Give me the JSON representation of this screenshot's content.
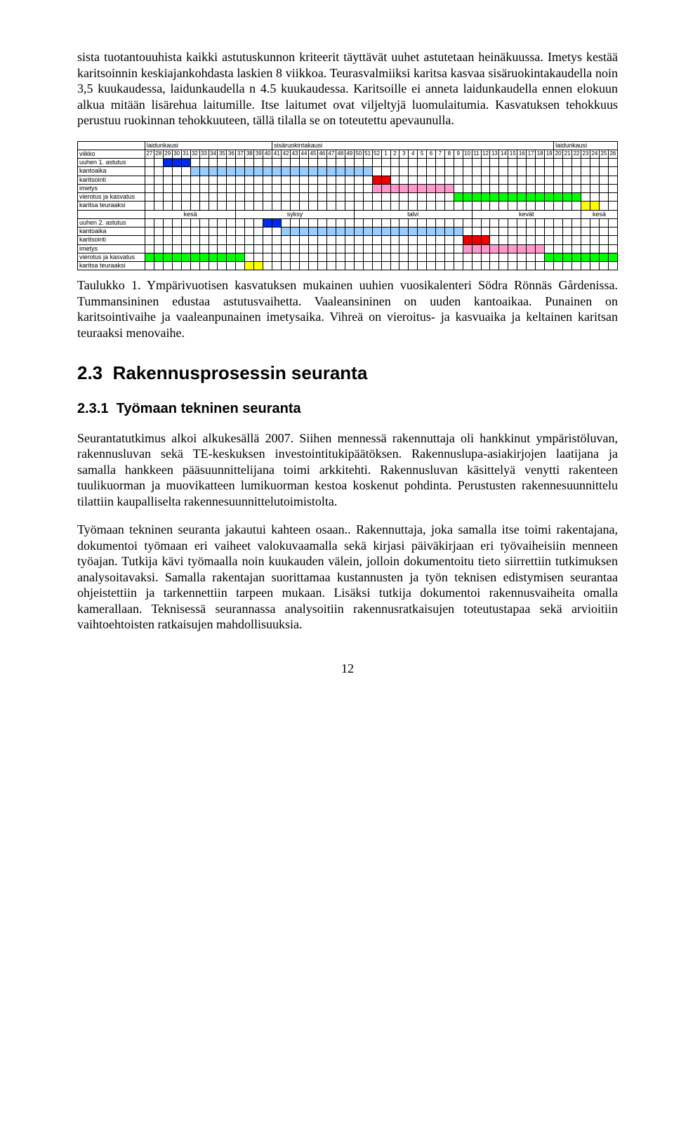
{
  "colors": {
    "dark_blue": "#002aee",
    "light_blue": "#99ccff",
    "red": "#ee0000",
    "pink": "#ff99cc",
    "green": "#00ff00",
    "yellow": "#ffff00",
    "bg": "#ffffff",
    "border": "#000000"
  },
  "para1": "sista tuotantouuhista kaikki astutuskunnon kriteerit täyttävät uuhet astutetaan heinäkuussa. Imetys kestää karitsoinnin keskiajankohdasta laskien 8 viikkoa. Teurasvalmiiksi karitsa kasvaa sisäruokintakaudella noin 3,5 kuukaudessa, laidunkaudella n 4.5 kuukaudessa. Karitsoille ei anneta laidunkaudella ennen elokuun alkua mitään lisärehua laitumille. Itse laitumet ovat viljeltyjä luomulaitumia. Kasvatuksen tehokkuus perustuu ruokinnan tehokkuuteen, tällä tilalla se on toteutettu apevaunulla.",
  "caption": "Taulukko 1. Ympärivuotisen kasvatuksen mukainen uuhien vuosikalenteri Södra Rönnäs Gårdenissa. Tummansininen edustaa astutusvaihetta. Vaaleansininen on uuden kantoaikaa. Punainen on karitsointivaihe ja vaaleanpunainen imetysaika. Vihreä on vieroitus- ja kasvuaika ja keltainen karitsan teuraaksi menovaihe.",
  "sec_num": "2.3",
  "sec_title": "Rakennusprosessin seuranta",
  "subsec_num": "2.3.1",
  "subsec_title": "Työmaan tekninen seuranta",
  "para2": "Seurantatutkimus alkoi alkukesällä 2007. Siihen mennessä rakennuttaja oli hankkinut ympäristöluvan, rakennusluvan sekä TE-keskuksen investointitukipäätöksen. Rakennuslupa-asiakirjojen laatijana ja samalla hankkeen pääsuunnittelijana toimi arkkitehti. Rakennusluvan käsittelyä venytti rakenteen tuulikuorman ja muovikatteen lumikuorman kestoa koskenut pohdinta. Perustusten rakennesuunnittelu tilattiin kaupalliselta rakennesuunnittelutoimistolta.",
  "para3": "Työmaan tekninen seuranta jakautui kahteen osaan.. Rakennuttaja, joka samalla itse toimi rakentajana, dokumentoi työmaan eri vaiheet valokuvaamalla sekä kirjasi päiväkirjaan eri työvaiheisiin menneen työajan. Tutkija kävi työmaalla noin kuukauden välein, jolloin dokumentoitu tieto siirrettiin tutkimuksen analysoitavaksi. Samalla rakentajan suorittamaa kustannusten ja työn teknisen edistymisen seurantaa ohjeistettiin ja tarkennettiin tarpeen mukaan. Lisäksi tutkija dokumentoi rakennusvaiheita omalla kamerallaan. Teknisessä seurannassa analysoitiin rakennusratkaisujen toteutustapaa sekä arvioitiin vaihtoehtoisten ratkaisujen mahdollisuuksia.",
  "pagenum": "12",
  "gantt": {
    "weeks": [
      27,
      28,
      29,
      30,
      31,
      32,
      33,
      34,
      35,
      36,
      37,
      38,
      39,
      40,
      41,
      42,
      43,
      44,
      45,
      46,
      47,
      48,
      49,
      50,
      51,
      52,
      1,
      2,
      3,
      4,
      5,
      6,
      7,
      8,
      9,
      10,
      11,
      12,
      13,
      14,
      15,
      16,
      17,
      18,
      19,
      20,
      21,
      22,
      23,
      24,
      25,
      26
    ],
    "top_headers": [
      {
        "label": "laidunkausi",
        "span": 14
      },
      {
        "label": "sisäruokintakausi",
        "span": 31
      },
      {
        "label": "laidunkausi",
        "span": 7
      }
    ],
    "viikko_label": "viikko",
    "rows1": [
      {
        "label": "uuhen 1. astutus",
        "cells": [
          0,
          0,
          1,
          1,
          1,
          0,
          0,
          0,
          0,
          0,
          0,
          0,
          0,
          0,
          0,
          0,
          0,
          0,
          0,
          0,
          0,
          0,
          0,
          0,
          0,
          0,
          0,
          0,
          0,
          0,
          0,
          0,
          0,
          0,
          0,
          0,
          0,
          0,
          0,
          0,
          0,
          0,
          0,
          0,
          0,
          0,
          0,
          0,
          0,
          0,
          0,
          0
        ]
      },
      {
        "label": "kantoaika",
        "cells": [
          0,
          0,
          0,
          0,
          0,
          2,
          2,
          2,
          2,
          2,
          2,
          2,
          2,
          2,
          2,
          2,
          2,
          2,
          2,
          2,
          2,
          2,
          2,
          2,
          2,
          0,
          0,
          0,
          0,
          0,
          0,
          0,
          0,
          0,
          0,
          0,
          0,
          0,
          0,
          0,
          0,
          0,
          0,
          0,
          0,
          0,
          0,
          0,
          0,
          0,
          0,
          0
        ]
      },
      {
        "label": "karitsointi",
        "cells": [
          0,
          0,
          0,
          0,
          0,
          0,
          0,
          0,
          0,
          0,
          0,
          0,
          0,
          0,
          0,
          0,
          0,
          0,
          0,
          0,
          0,
          0,
          0,
          0,
          0,
          3,
          3,
          0,
          0,
          0,
          0,
          0,
          0,
          0,
          0,
          0,
          0,
          0,
          0,
          0,
          0,
          0,
          0,
          0,
          0,
          0,
          0,
          0,
          0,
          0,
          0,
          0
        ]
      },
      {
        "label": "imetys",
        "cells": [
          0,
          0,
          0,
          0,
          0,
          0,
          0,
          0,
          0,
          0,
          0,
          0,
          0,
          0,
          0,
          0,
          0,
          0,
          0,
          0,
          0,
          0,
          0,
          0,
          0,
          4,
          4,
          4,
          4,
          4,
          4,
          4,
          4,
          4,
          0,
          0,
          0,
          0,
          0,
          0,
          0,
          0,
          0,
          0,
          0,
          0,
          0,
          0,
          0,
          0,
          0,
          0
        ]
      },
      {
        "label": "vierotus ja kasvatus",
        "cells": [
          0,
          0,
          0,
          0,
          0,
          0,
          0,
          0,
          0,
          0,
          0,
          0,
          0,
          0,
          0,
          0,
          0,
          0,
          0,
          0,
          0,
          0,
          0,
          0,
          0,
          0,
          0,
          0,
          0,
          0,
          0,
          0,
          0,
          0,
          5,
          5,
          5,
          5,
          5,
          5,
          5,
          5,
          5,
          5,
          5,
          5,
          5,
          5,
          0,
          0,
          0,
          0
        ]
      },
      {
        "label": "karitsa teuraaksi",
        "cells": [
          0,
          0,
          0,
          0,
          0,
          0,
          0,
          0,
          0,
          0,
          0,
          0,
          0,
          0,
          0,
          0,
          0,
          0,
          0,
          0,
          0,
          0,
          0,
          0,
          0,
          0,
          0,
          0,
          0,
          0,
          0,
          0,
          0,
          0,
          0,
          0,
          0,
          0,
          0,
          0,
          0,
          0,
          0,
          0,
          0,
          0,
          0,
          0,
          6,
          6,
          0,
          0
        ]
      }
    ],
    "season_headers": [
      {
        "label": "kesä",
        "span": 10
      },
      {
        "label": "syksy",
        "span": 13
      },
      {
        "label": "talvi",
        "span": 13
      },
      {
        "label": "kevät",
        "span": 12
      },
      {
        "label": "kesä",
        "span": 4
      }
    ],
    "rows2": [
      {
        "label": "uuhen 2. astutus",
        "cells": [
          0,
          0,
          0,
          0,
          0,
          0,
          0,
          0,
          0,
          0,
          0,
          0,
          0,
          1,
          1,
          0,
          0,
          0,
          0,
          0,
          0,
          0,
          0,
          0,
          0,
          0,
          0,
          0,
          0,
          0,
          0,
          0,
          0,
          0,
          0,
          0,
          0,
          0,
          0,
          0,
          0,
          0,
          0,
          0,
          0,
          0,
          0,
          0,
          0,
          0,
          0,
          0
        ]
      },
      {
        "label": "kantoaika",
        "cells": [
          0,
          0,
          0,
          0,
          0,
          0,
          0,
          0,
          0,
          0,
          0,
          0,
          0,
          0,
          0,
          2,
          2,
          2,
          2,
          2,
          2,
          2,
          2,
          2,
          2,
          2,
          2,
          2,
          2,
          2,
          2,
          2,
          2,
          2,
          2,
          0,
          0,
          0,
          0,
          0,
          0,
          0,
          0,
          0,
          0,
          0,
          0,
          0,
          0,
          0,
          0,
          0
        ]
      },
      {
        "label": "karitsointi",
        "cells": [
          0,
          0,
          0,
          0,
          0,
          0,
          0,
          0,
          0,
          0,
          0,
          0,
          0,
          0,
          0,
          0,
          0,
          0,
          0,
          0,
          0,
          0,
          0,
          0,
          0,
          0,
          0,
          0,
          0,
          0,
          0,
          0,
          0,
          0,
          0,
          3,
          3,
          3,
          0,
          0,
          0,
          0,
          0,
          0,
          0,
          0,
          0,
          0,
          0,
          0,
          0,
          0
        ]
      },
      {
        "label": "imetys",
        "cells": [
          0,
          0,
          0,
          0,
          0,
          0,
          0,
          0,
          0,
          0,
          0,
          0,
          0,
          0,
          0,
          0,
          0,
          0,
          0,
          0,
          0,
          0,
          0,
          0,
          0,
          0,
          0,
          0,
          0,
          0,
          0,
          0,
          0,
          0,
          0,
          4,
          4,
          4,
          4,
          4,
          4,
          4,
          4,
          4,
          0,
          0,
          0,
          0,
          0,
          0,
          0,
          0
        ]
      },
      {
        "label": "vierotus ja kasvatus",
        "cells": [
          5,
          5,
          5,
          5,
          5,
          5,
          5,
          5,
          5,
          5,
          5,
          0,
          0,
          0,
          0,
          0,
          0,
          0,
          0,
          0,
          0,
          0,
          0,
          0,
          0,
          0,
          0,
          0,
          0,
          0,
          0,
          0,
          0,
          0,
          0,
          0,
          0,
          0,
          0,
          0,
          0,
          0,
          0,
          0,
          5,
          5,
          5,
          5,
          5,
          5,
          5,
          5
        ]
      },
      {
        "label": "karitsa teuraaksi",
        "cells": [
          0,
          0,
          0,
          0,
          0,
          0,
          0,
          0,
          0,
          0,
          0,
          6,
          6,
          0,
          0,
          0,
          0,
          0,
          0,
          0,
          0,
          0,
          0,
          0,
          0,
          0,
          0,
          0,
          0,
          0,
          0,
          0,
          0,
          0,
          0,
          0,
          0,
          0,
          0,
          0,
          0,
          0,
          0,
          0,
          0,
          0,
          0,
          0,
          0,
          0,
          0,
          0
        ]
      }
    ]
  }
}
